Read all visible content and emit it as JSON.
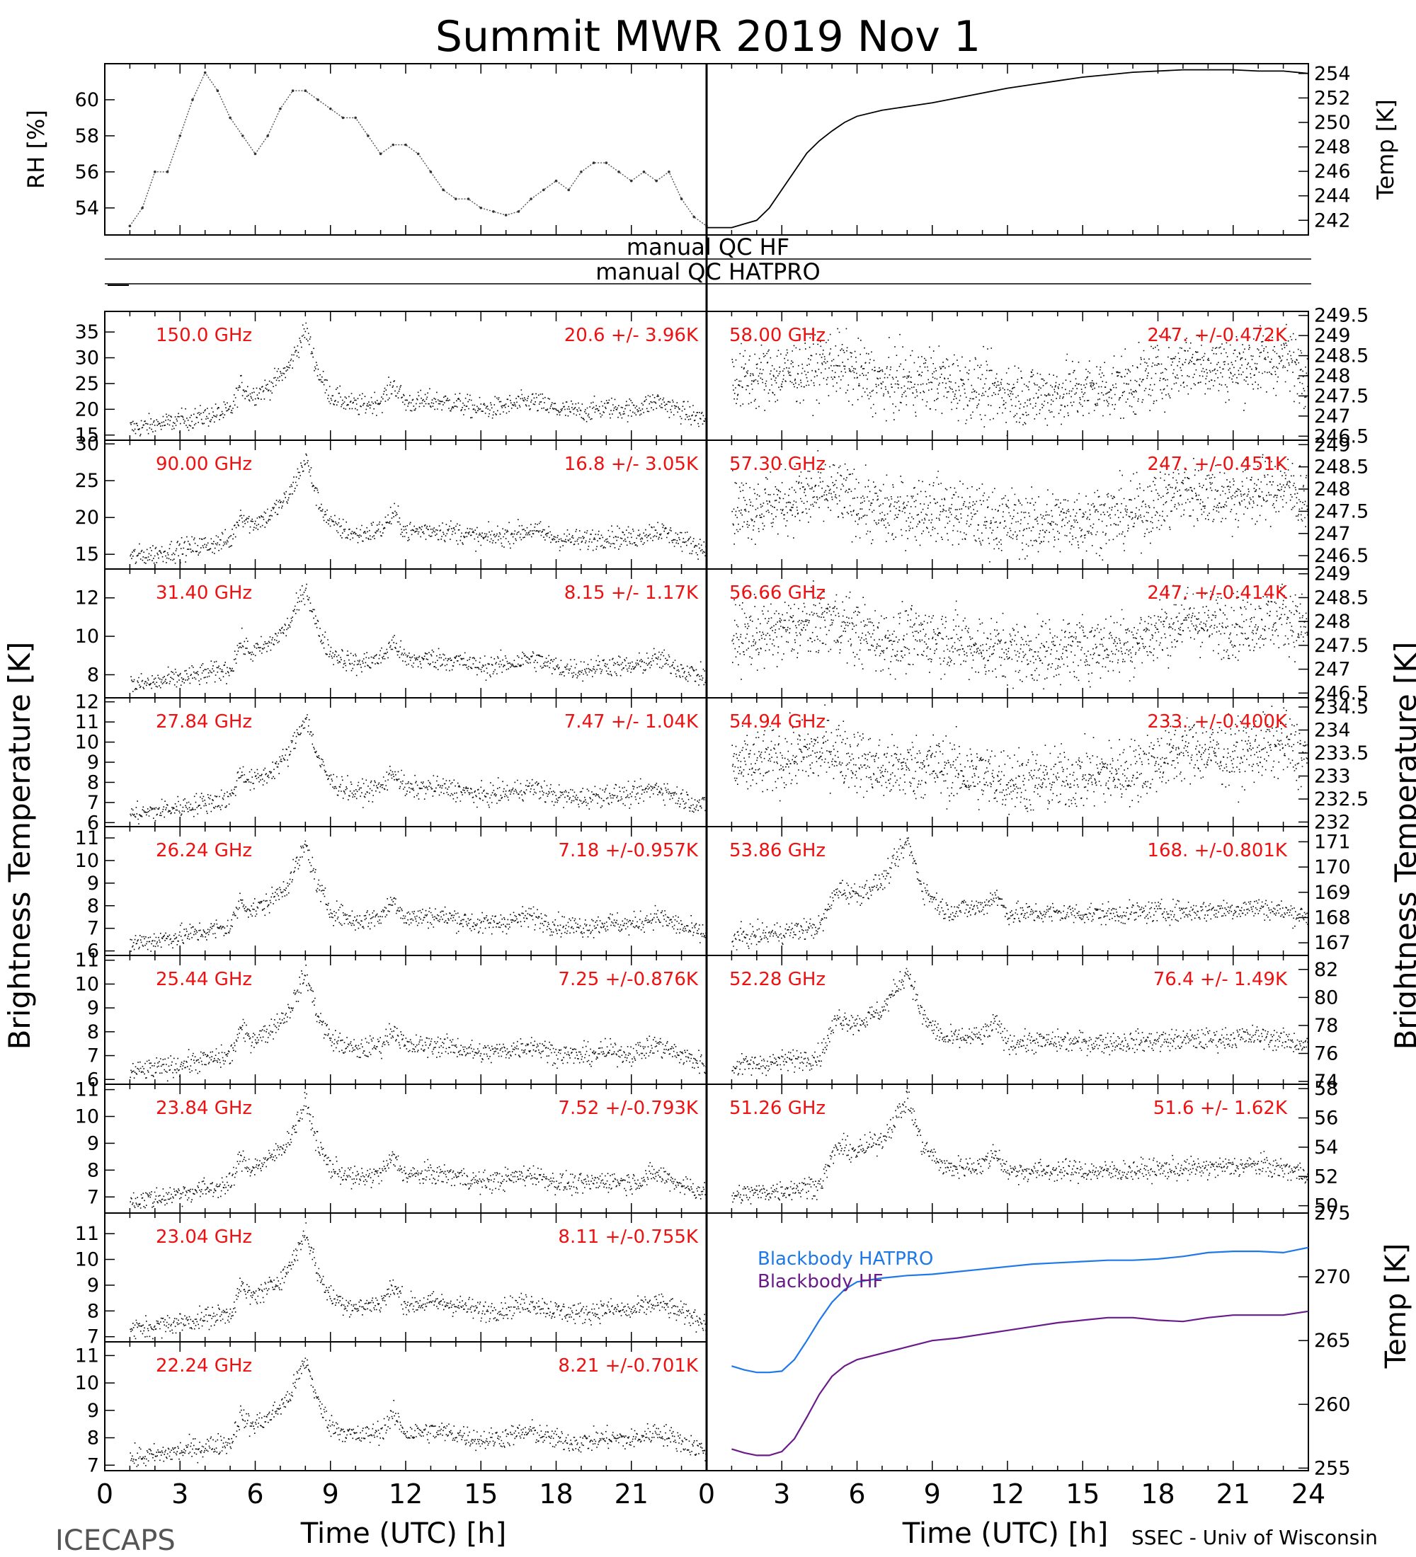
{
  "title": "Summit MWR 2019 Nov  1",
  "footer_left": "ICECAPS",
  "footer_right": "SSEC - Univ of Wisconsin",
  "colors": {
    "ann": "#ee1111",
    "hatpro": "#1e78e8",
    "hf": "#6a1b8a",
    "trace": "#000000"
  },
  "chart_data": [
    {
      "id": "rh",
      "type": "scatter",
      "panel": "top-left",
      "ylabel": "RH [%]",
      "yticks": [
        54,
        56,
        58,
        60
      ],
      "ylim": [
        52.5,
        62
      ],
      "xlim": [
        0,
        24
      ],
      "grid": false,
      "x": [
        1,
        1.5,
        2,
        2.5,
        3,
        3.5,
        4,
        4.5,
        5,
        5.5,
        6,
        6.5,
        7,
        7.5,
        8,
        8.5,
        9,
        9.5,
        10,
        10.5,
        11,
        11.5,
        12,
        12.5,
        13,
        13.5,
        14,
        14.5,
        15,
        15.5,
        16,
        16.5,
        17,
        17.5,
        18,
        18.5,
        19,
        19.5,
        20,
        20.5,
        21,
        21.5,
        22,
        22.5,
        23,
        23.5,
        24
      ],
      "y": [
        53,
        54,
        56,
        56,
        58,
        60,
        61.5,
        60.5,
        59,
        58,
        57,
        58,
        59.5,
        60.5,
        60.5,
        60,
        59.5,
        59,
        59,
        58,
        57,
        57.5,
        57.5,
        57,
        56,
        55,
        54.5,
        54.5,
        54,
        53.8,
        53.6,
        53.8,
        54.5,
        55,
        55.5,
        55,
        56,
        56.5,
        56.5,
        56,
        55.5,
        56,
        55.5,
        56,
        54.5,
        53.5,
        53
      ]
    },
    {
      "id": "temp",
      "type": "line",
      "panel": "top-right",
      "ylabel": "Temp [K]",
      "yticks": [
        242,
        244,
        246,
        248,
        250,
        252,
        254
      ],
      "ylim": [
        240.8,
        254.8
      ],
      "xlim": [
        0,
        24
      ],
      "grid": false,
      "x": [
        0,
        1,
        2,
        2.5,
        3,
        3.5,
        4,
        4.5,
        5,
        5.5,
        6,
        7,
        8,
        9,
        10,
        11,
        12,
        13,
        14,
        15,
        16,
        17,
        18,
        19,
        20,
        21,
        22,
        23,
        24
      ],
      "y": [
        241.4,
        241.4,
        242,
        243,
        244.5,
        246,
        247.5,
        248.5,
        249.3,
        250,
        250.5,
        251,
        251.3,
        251.6,
        252,
        252.4,
        252.8,
        253.1,
        253.4,
        253.7,
        253.9,
        254.1,
        254.2,
        254.3,
        254.3,
        254.3,
        254.2,
        254.2,
        254
      ]
    },
    {
      "id": "b150",
      "type": "scatter",
      "panel": "left-1",
      "freq_label": "150.0 GHz",
      "stat": "20.6 +/-  3.96K",
      "yticks": [
        15,
        20,
        25,
        30,
        35
      ],
      "ylim": [
        14,
        39
      ]
    },
    {
      "id": "b90",
      "type": "scatter",
      "panel": "left-2",
      "freq_label": "90.00 GHz",
      "stat": "16.8 +/-  3.05K",
      "yticks": [
        15,
        20,
        25,
        30
      ],
      "ylim": [
        13,
        30.5
      ]
    },
    {
      "id": "b314",
      "type": "scatter",
      "panel": "left-3",
      "freq_label": "31.40 GHz",
      "stat": "8.15 +/- 1.17K",
      "yticks": [
        8,
        10,
        12
      ],
      "ylim": [
        6.8,
        13.5
      ]
    },
    {
      "id": "b2784",
      "type": "scatter",
      "panel": "left-4",
      "freq_label": "27.84 GHz",
      "stat": "7.47 +/- 1.04K",
      "yticks": [
        6,
        7,
        8,
        9,
        10,
        11,
        12
      ],
      "ylim": [
        5.8,
        12.2
      ]
    },
    {
      "id": "b2624",
      "type": "scatter",
      "panel": "left-5",
      "freq_label": "26.24 GHz",
      "stat": "7.18 +/-0.957K",
      "yticks": [
        6,
        7,
        8,
        9,
        10,
        11
      ],
      "ylim": [
        5.8,
        11.5
      ]
    },
    {
      "id": "b2544",
      "type": "scatter",
      "panel": "left-6",
      "freq_label": "25.44 GHz",
      "stat": "7.25 +/-0.876K",
      "yticks": [
        6,
        7,
        8,
        9,
        10,
        11
      ],
      "ylim": [
        5.8,
        11.2
      ]
    },
    {
      "id": "b2384",
      "type": "scatter",
      "panel": "left-7",
      "freq_label": "23.84 GHz",
      "stat": "7.52 +/-0.793K",
      "yticks": [
        7,
        8,
        9,
        10,
        11
      ],
      "ylim": [
        6.4,
        11.2
      ]
    },
    {
      "id": "b2304",
      "type": "scatter",
      "panel": "left-8",
      "freq_label": "23.04 GHz",
      "stat": "8.11 +/-0.755K",
      "yticks": [
        7,
        8,
        9,
        10,
        11
      ],
      "ylim": [
        6.8,
        11.8
      ]
    },
    {
      "id": "b2224",
      "type": "scatter",
      "panel": "left-9",
      "freq_label": "22.24 GHz",
      "stat": "8.21 +/-0.701K",
      "yticks": [
        7,
        8,
        9,
        10,
        11
      ],
      "ylim": [
        6.8,
        11.5
      ]
    },
    {
      "id": "b5800",
      "type": "scatter",
      "panel": "right-1",
      "freq_label": "58.00 GHz",
      "stat": "247. +/-0.472K",
      "yticks": [
        246.5,
        247,
        247.5,
        248,
        248.5,
        249,
        249.5
      ],
      "ylim": [
        246.4,
        249.6
      ]
    },
    {
      "id": "b5730",
      "type": "scatter",
      "panel": "right-2",
      "freq_label": "57.30 GHz",
      "stat": "247. +/-0.451K",
      "yticks": [
        246.5,
        247,
        247.5,
        248,
        248.5,
        249
      ],
      "ylim": [
        246.2,
        249.1
      ]
    },
    {
      "id": "b5666",
      "type": "scatter",
      "panel": "right-3",
      "freq_label": "56.66 GHz",
      "stat": "247. +/-0.414K",
      "yticks": [
        246.5,
        247,
        247.5,
        248,
        248.5,
        249
      ],
      "ylim": [
        246.4,
        249.1
      ]
    },
    {
      "id": "b5494",
      "type": "scatter",
      "panel": "right-4",
      "freq_label": "54.94 GHz",
      "stat": "233. +/-0.400K",
      "yticks": [
        232,
        232.5,
        233,
        233.5,
        234,
        234.5
      ],
      "ylim": [
        231.9,
        234.7
      ]
    },
    {
      "id": "b5386",
      "type": "scatter",
      "panel": "right-5",
      "freq_label": "53.86 GHz",
      "stat": "168. +/-0.801K",
      "yticks": [
        167,
        168,
        169,
        170,
        171
      ],
      "ylim": [
        166.5,
        171.6
      ]
    },
    {
      "id": "b5228",
      "type": "scatter",
      "panel": "right-6",
      "freq_label": "52.28 GHz",
      "stat": "76.4 +/- 1.49K",
      "yticks": [
        74,
        76,
        78,
        80,
        82
      ],
      "ylim": [
        73.8,
        83
      ]
    },
    {
      "id": "b5126",
      "type": "scatter",
      "panel": "right-7",
      "freq_label": "51.26 GHz",
      "stat": "51.6 +/- 1.62K",
      "yticks": [
        50,
        52,
        54,
        56,
        58
      ],
      "ylim": [
        49.5,
        58.3
      ]
    },
    {
      "id": "bb",
      "type": "line",
      "panel": "right-bottom",
      "ylabel": "Temp [K]",
      "yticks": [
        255,
        260,
        265,
        270,
        275
      ],
      "ylim": [
        254.8,
        275
      ],
      "xlim": [
        0,
        24
      ],
      "grid": false,
      "series": [
        {
          "name": "Blackbody HATPRO",
          "x": [
            1,
            1.5,
            2,
            2.5,
            3,
            3.5,
            4,
            4.5,
            5,
            5.5,
            6,
            7,
            8,
            9,
            10,
            11,
            12,
            13,
            14,
            15,
            16,
            17,
            18,
            19,
            20,
            21,
            22,
            23,
            24
          ],
          "y": [
            263,
            262.7,
            262.5,
            262.5,
            262.6,
            263.5,
            265,
            266.6,
            268,
            269,
            269.6,
            269.9,
            270.1,
            270.2,
            270.4,
            270.6,
            270.8,
            271,
            271.1,
            271.2,
            271.3,
            271.3,
            271.4,
            271.6,
            271.9,
            272,
            272,
            271.9,
            272.3
          ]
        },
        {
          "name": "Blackbody HF",
          "x": [
            1,
            1.5,
            2,
            2.5,
            3,
            3.5,
            4,
            4.5,
            5,
            5.5,
            6,
            7,
            8,
            9,
            10,
            11,
            12,
            13,
            14,
            15,
            16,
            17,
            18,
            19,
            20,
            21,
            22,
            23,
            24
          ],
          "y": [
            256.5,
            256.2,
            256,
            256,
            256.3,
            257.3,
            259,
            260.8,
            262.2,
            263,
            263.5,
            264,
            264.5,
            265,
            265.2,
            265.5,
            265.8,
            266.1,
            266.4,
            266.6,
            266.8,
            266.8,
            266.6,
            266.5,
            266.8,
            267,
            267,
            267,
            267.3
          ]
        }
      ]
    }
  ],
  "left_ylabel": "Brightness Temperature [K]",
  "right_ylabel": "Brightness Temperature [K]",
  "xlabel": "Time (UTC) [h]",
  "xticks_left": [
    "0",
    "3",
    "6",
    "9",
    "12",
    "15",
    "18",
    "21"
  ],
  "xticks_right": [
    "0",
    "3",
    "6",
    "9",
    "12",
    "15",
    "18",
    "21",
    "24"
  ],
  "qc": {
    "hf": "manual  QC HF",
    "hatpro": "manual  QC HATPRO"
  }
}
